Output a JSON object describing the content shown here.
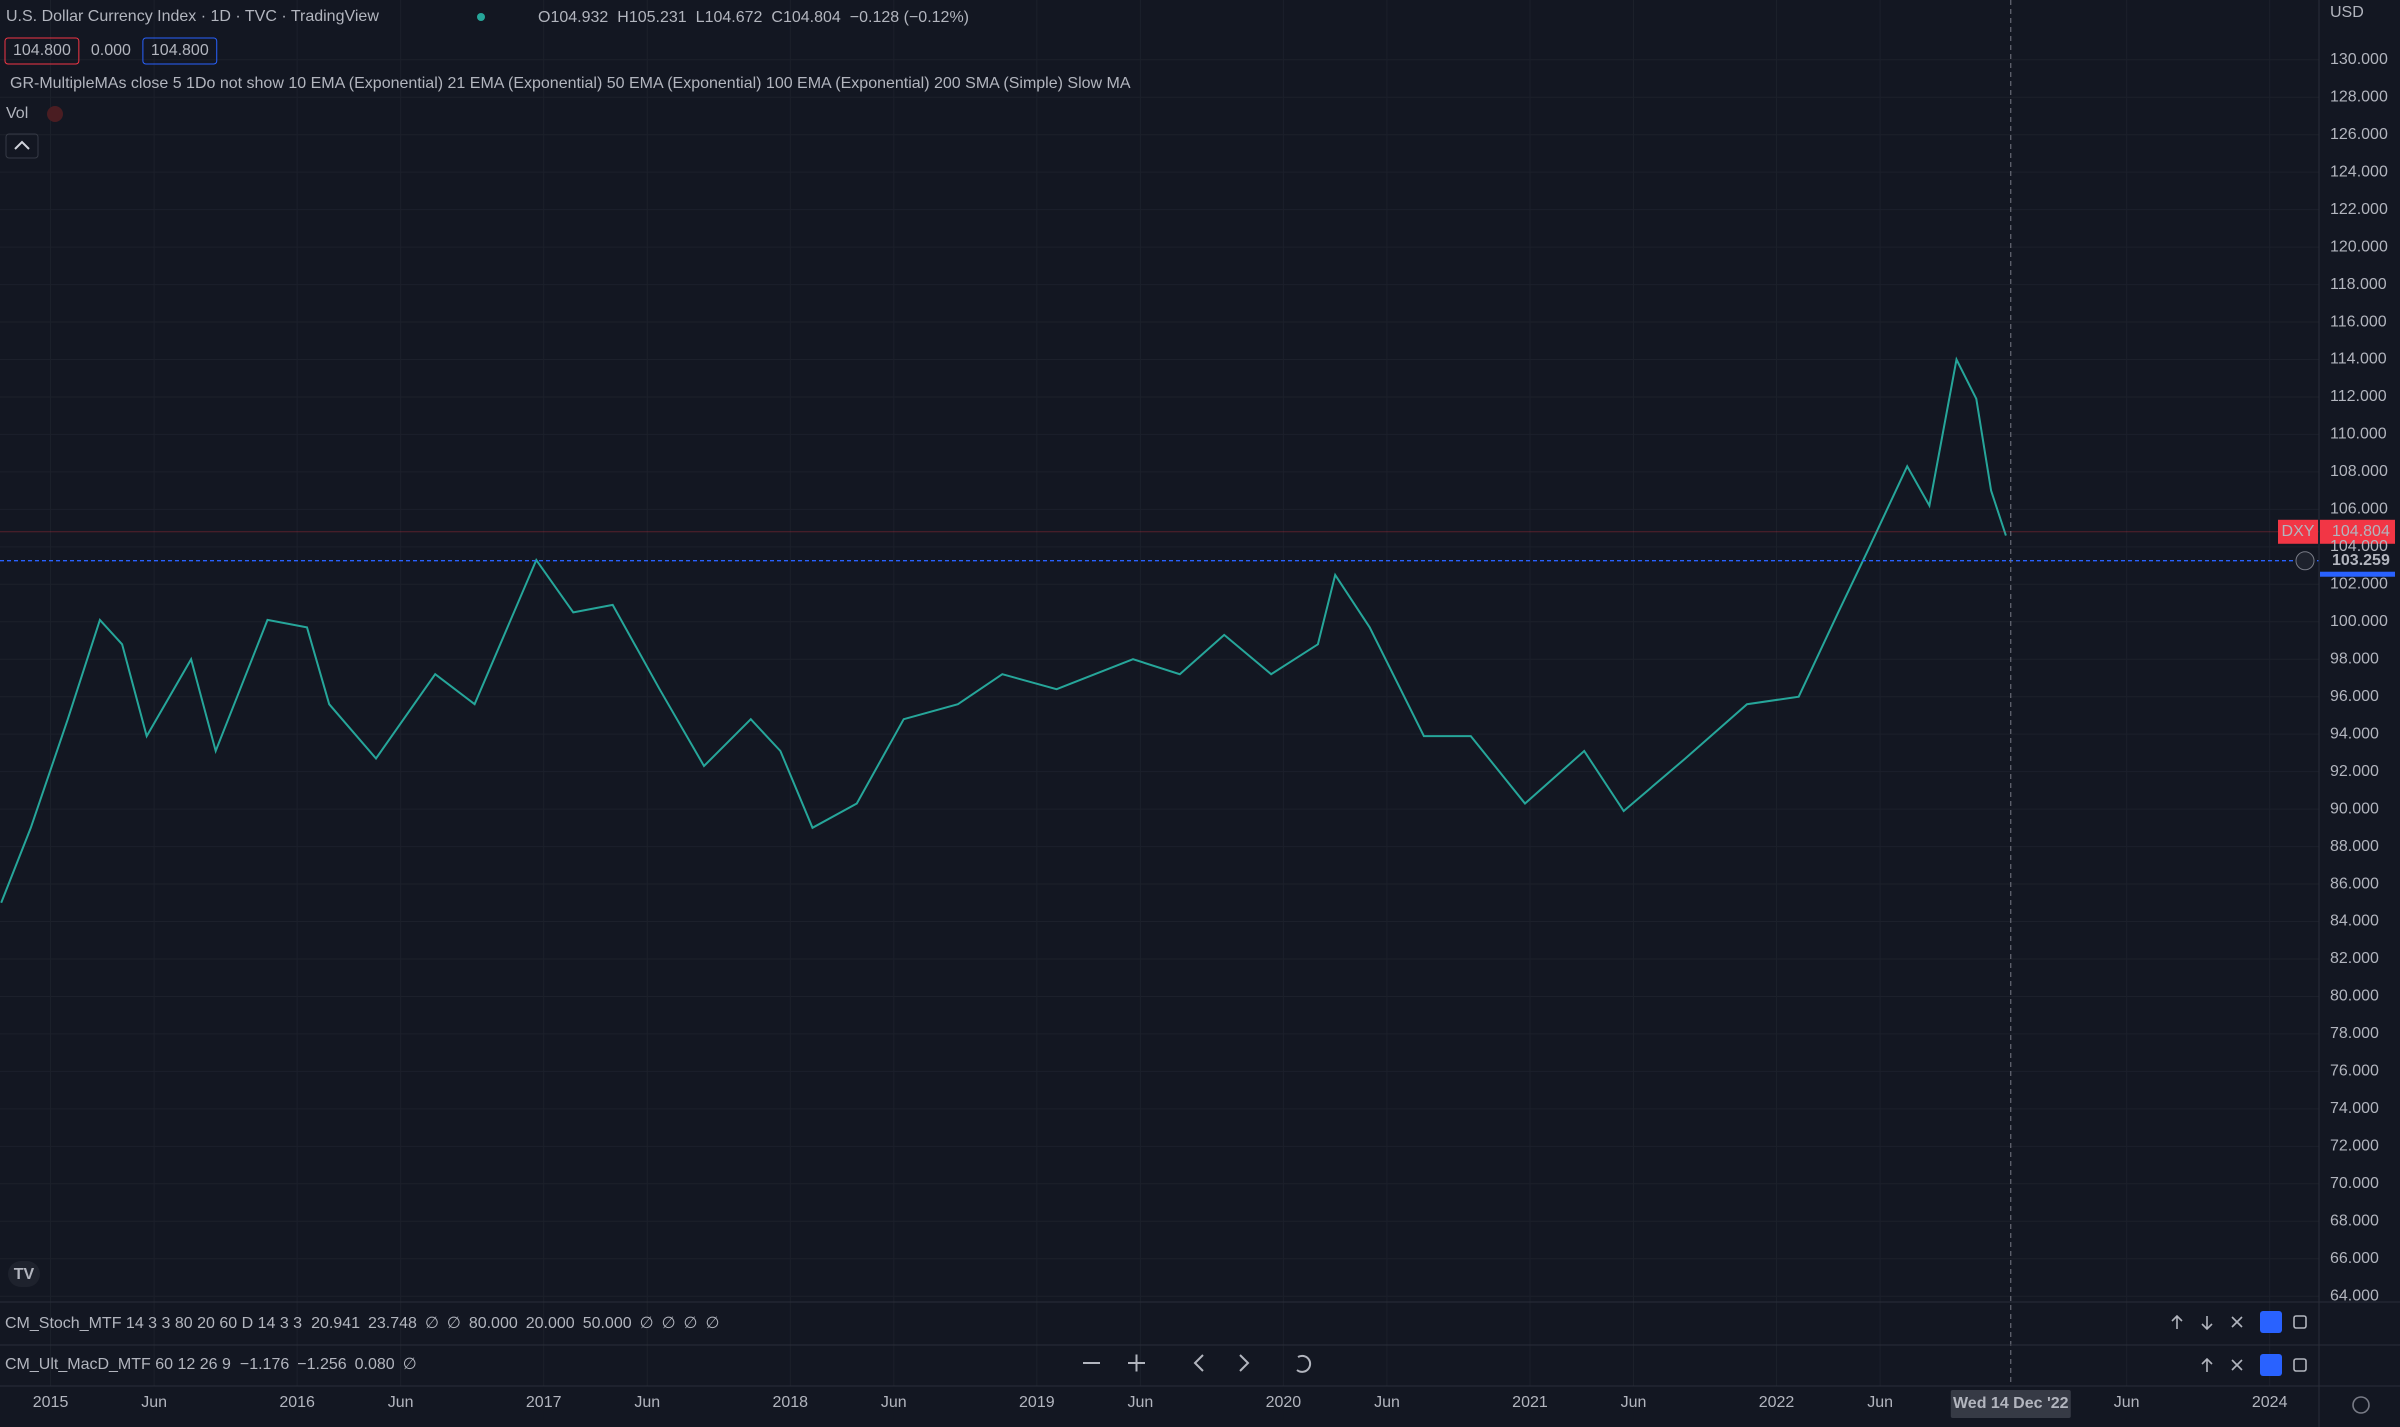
{
  "header": {
    "title": "U.S. Dollar Currency Index · 1D · TVC · TradingView",
    "ohlc": [
      "O104.932",
      "H105.231",
      "L104.672",
      "C104.804",
      "−0.128 (−0.12%)"
    ],
    "badges": [
      "104.800",
      "0.000",
      "104.800"
    ],
    "indicator": "GR-MultipleMAs close 5 1Do not show 10 EMA (Exponential) 21 EMA (Exponential) 50 EMA (Exponential) 100 EMA (Exponential) 200 SMA (Simple) Slow MA",
    "volume": "Vol",
    "currency": "USD"
  },
  "panes": [
    {
      "label": "CM_Stoch_MTF 14 3 3 80 20 60 D 14 3 3",
      "values": [
        "20.941",
        "23.748",
        "∅",
        "∅",
        "80.000",
        "20.000",
        "50.000",
        "∅",
        "∅",
        "∅",
        "∅"
      ],
      "colors": [
        "#8bc34a",
        "#f23645",
        "#b2b5be",
        "#b2b5be",
        "#f23645",
        "#8bc34a",
        "#787b86",
        "#b2b5be",
        "#b2b5be",
        "#b2b5be",
        "#b2b5be"
      ]
    },
    {
      "label": "CM_Ult_MacD_MTF 60 12 26 9",
      "values": [
        "−1.176",
        "−1.256",
        "0.080",
        "∅"
      ],
      "colors": [
        "#8bc34a",
        "#ffeb3b",
        "#26c6da",
        "#b2b5be"
      ]
    }
  ],
  "chart_data": {
    "type": "line",
    "color": "#26a69a",
    "x": [
      2014.8,
      2014.92,
      2015.07,
      2015.2,
      2015.29,
      2015.39,
      2015.57,
      2015.67,
      2015.88,
      2016.04,
      2016.13,
      2016.32,
      2016.56,
      2016.72,
      2016.97,
      2017.12,
      2017.28,
      2017.47,
      2017.65,
      2017.84,
      2017.96,
      2018.09,
      2018.27,
      2018.46,
      2018.68,
      2018.86,
      2019.08,
      2019.39,
      2019.58,
      2019.76,
      2019.95,
      2020.14,
      2020.21,
      2020.35,
      2020.57,
      2020.76,
      2020.98,
      2021.22,
      2021.38,
      2021.63,
      2021.88,
      2022.09,
      2022.25,
      2022.37,
      2022.53,
      2022.62,
      2022.73,
      2022.81,
      2022.87,
      2022.93
    ],
    "values": [
      85.0,
      89.0,
      94.8,
      100.1,
      98.8,
      93.9,
      98.0,
      93.1,
      100.1,
      99.7,
      95.6,
      92.7,
      97.2,
      95.6,
      103.3,
      100.5,
      100.9,
      96.4,
      92.3,
      94.8,
      93.1,
      89.0,
      90.3,
      94.8,
      95.6,
      97.2,
      96.4,
      98.0,
      97.2,
      99.3,
      97.2,
      98.8,
      102.5,
      99.7,
      93.9,
      93.9,
      90.3,
      93.1,
      89.9,
      92.7,
      95.6,
      96.0,
      100.5,
      103.8,
      108.3,
      106.2,
      114.0,
      111.9,
      107.0,
      104.6
    ],
    "xlim": [
      2014.795,
      2024.2
    ],
    "xticks": [
      2015,
      {
        "value": 2015.42,
        "label": "Jun"
      },
      2016,
      {
        "value": 2016.42,
        "label": "Jun"
      },
      2017,
      {
        "value": 2017.42,
        "label": "Jun"
      },
      2018,
      {
        "value": 2018.42,
        "label": "Jun"
      },
      2019,
      {
        "value": 2019.42,
        "label": "Jun"
      },
      2020,
      {
        "value": 2020.42,
        "label": "Jun"
      },
      2021,
      {
        "value": 2021.42,
        "label": "Jun"
      },
      2022,
      {
        "value": 2022.42,
        "label": "Jun"
      },
      {
        "value": 2023.42,
        "label": "Jun"
      },
      2024
    ],
    "ylim": [
      63.69,
      133.19
    ],
    "yticks": [
      {
        "value": 64,
        "label": "64.000"
      },
      {
        "value": 66,
        "label": "66.000"
      },
      {
        "value": 68,
        "label": "68.000"
      },
      {
        "value": 70,
        "label": "70.000"
      },
      {
        "value": 72,
        "label": "72.000"
      },
      {
        "value": 74,
        "label": "74.000"
      },
      {
        "value": 76,
        "label": "76.000"
      },
      {
        "value": 78,
        "label": "78.000"
      },
      {
        "value": 80,
        "label": "80.000"
      },
      {
        "value": 82,
        "label": "82.000"
      },
      {
        "value": 84,
        "label": "84.000"
      },
      {
        "value": 86,
        "label": "86.000"
      },
      {
        "value": 88,
        "label": "88.000"
      },
      {
        "value": 90,
        "label": "90.000"
      },
      {
        "value": 92,
        "label": "92.000"
      },
      {
        "value": 94,
        "label": "94.000"
      },
      {
        "value": 96,
        "label": "96.000"
      },
      {
        "value": 98,
        "label": "98.000"
      },
      {
        "value": 100,
        "label": "100.000"
      },
      {
        "value": 102,
        "label": "102.000"
      },
      {
        "value": 104,
        "label": "104.000"
      },
      {
        "value": 106,
        "label": "106.000"
      },
      {
        "value": 108,
        "label": "108.000"
      },
      {
        "value": 110,
        "label": "110.000"
      },
      {
        "value": 112,
        "label": "112.000"
      },
      {
        "value": 114,
        "label": "114.000"
      },
      {
        "value": 116,
        "label": "116.000"
      },
      {
        "value": 118,
        "label": "118.000"
      },
      {
        "value": 120,
        "label": "120.000"
      },
      {
        "value": 122,
        "label": "122.000"
      },
      {
        "value": 124,
        "label": "124.000"
      },
      {
        "value": 126,
        "label": "126.000"
      },
      {
        "value": 128,
        "label": "128.000"
      },
      {
        "value": 130,
        "label": "130.000"
      }
    ],
    "grid": true,
    "last_price": {
      "value": 104.804,
      "label": "DXY"
    },
    "horizontal_line": 103.259,
    "crosshair": {
      "value": 2022.95,
      "label": "Wed 14 Dec '22"
    }
  }
}
